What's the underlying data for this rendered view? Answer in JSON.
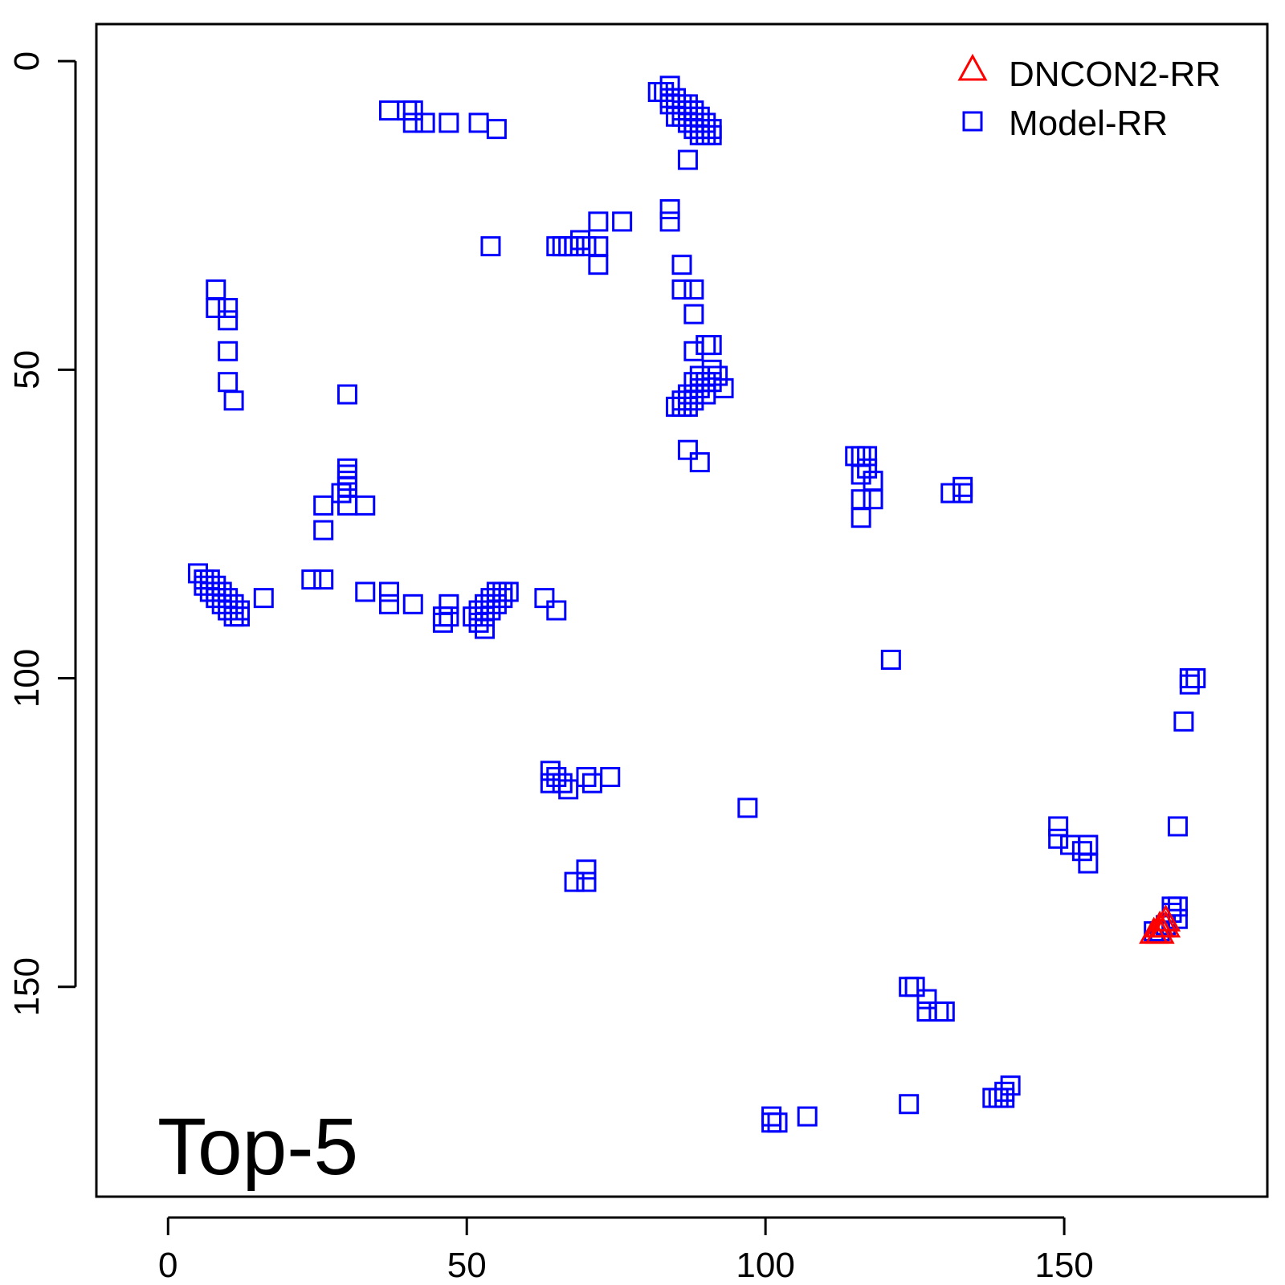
{
  "chart_data": {
    "type": "scatter",
    "title": "",
    "xlabel": "",
    "ylabel": "",
    "annotation": "Top-5",
    "xlim": [
      -12,
      184
    ],
    "ylim": [
      -6,
      184
    ],
    "y_reversed": true,
    "grid": false,
    "legend_position": "top-right",
    "x_ticks": [
      "0",
      "50",
      "100",
      "150"
    ],
    "x_tick_values": [
      0,
      50,
      100,
      150
    ],
    "y_ticks": [
      "0",
      "50",
      "100",
      "150"
    ],
    "y_tick_values": [
      0,
      50,
      100,
      150
    ],
    "series": [
      {
        "name": "DNCON2-RR",
        "marker": "triangle",
        "color": "#ff0000",
        "points": [
          [
            165,
            141
          ],
          [
            166,
            140
          ],
          [
            167,
            139
          ],
          [
            166,
            141
          ],
          [
            167,
            140
          ]
        ]
      },
      {
        "name": "Model-RR",
        "marker": "square",
        "color": "#0000ff",
        "points": [
          [
            37,
            8
          ],
          [
            40,
            8
          ],
          [
            41,
            8
          ],
          [
            41,
            10
          ],
          [
            43,
            10
          ],
          [
            47,
            10
          ],
          [
            52,
            10
          ],
          [
            55,
            11
          ],
          [
            82,
            5
          ],
          [
            83,
            5
          ],
          [
            84,
            4
          ],
          [
            84,
            6
          ],
          [
            84,
            7
          ],
          [
            85,
            6
          ],
          [
            85,
            7
          ],
          [
            85,
            9
          ],
          [
            86,
            7
          ],
          [
            86,
            8
          ],
          [
            86,
            9
          ],
          [
            87,
            7
          ],
          [
            87,
            8
          ],
          [
            87,
            10
          ],
          [
            88,
            8
          ],
          [
            88,
            9
          ],
          [
            88,
            10
          ],
          [
            88,
            11
          ],
          [
            89,
            9
          ],
          [
            89,
            11
          ],
          [
            89,
            12
          ],
          [
            90,
            10
          ],
          [
            90,
            12
          ],
          [
            91,
            11
          ],
          [
            91,
            12
          ],
          [
            87,
            16
          ],
          [
            84,
            24
          ],
          [
            84,
            26
          ],
          [
            86,
            33
          ],
          [
            86,
            37
          ],
          [
            88,
            37
          ],
          [
            88,
            41
          ],
          [
            88,
            47
          ],
          [
            90,
            46
          ],
          [
            91,
            46
          ],
          [
            72,
            26
          ],
          [
            76,
            26
          ],
          [
            54,
            30
          ],
          [
            65,
            30
          ],
          [
            66,
            30
          ],
          [
            67,
            30
          ],
          [
            68,
            30
          ],
          [
            69,
            29
          ],
          [
            70,
            30
          ],
          [
            72,
            30
          ],
          [
            72,
            33
          ],
          [
            8,
            37
          ],
          [
            8,
            40
          ],
          [
            10,
            40
          ],
          [
            10,
            42
          ],
          [
            10,
            47
          ],
          [
            10,
            52
          ],
          [
            11,
            55
          ],
          [
            30,
            54
          ],
          [
            85,
            56
          ],
          [
            86,
            55
          ],
          [
            86,
            56
          ],
          [
            87,
            54
          ],
          [
            87,
            56
          ],
          [
            88,
            52
          ],
          [
            88,
            54
          ],
          [
            88,
            55
          ],
          [
            89,
            51
          ],
          [
            89,
            53
          ],
          [
            90,
            52
          ],
          [
            90,
            54
          ],
          [
            91,
            50
          ],
          [
            91,
            52
          ],
          [
            92,
            51
          ],
          [
            93,
            53
          ],
          [
            87,
            63
          ],
          [
            89,
            65
          ],
          [
            115,
            64
          ],
          [
            116,
            64
          ],
          [
            116,
            67
          ],
          [
            117,
            64
          ],
          [
            117,
            66
          ],
          [
            118,
            68
          ],
          [
            116,
            71
          ],
          [
            118,
            71
          ],
          [
            116,
            74
          ],
          [
            131,
            70
          ],
          [
            133,
            69
          ],
          [
            133,
            70
          ],
          [
            30,
            66
          ],
          [
            30,
            67
          ],
          [
            30,
            68
          ],
          [
            30,
            69
          ],
          [
            29,
            70
          ],
          [
            26,
            72
          ],
          [
            30,
            72
          ],
          [
            33,
            72
          ],
          [
            26,
            76
          ],
          [
            5,
            83
          ],
          [
            6,
            84
          ],
          [
            6,
            85
          ],
          [
            7,
            84
          ],
          [
            7,
            86
          ],
          [
            8,
            85
          ],
          [
            8,
            86
          ],
          [
            8,
            87
          ],
          [
            9,
            86
          ],
          [
            9,
            88
          ],
          [
            10,
            87
          ],
          [
            10,
            89
          ],
          [
            11,
            88
          ],
          [
            11,
            90
          ],
          [
            12,
            89
          ],
          [
            12,
            90
          ],
          [
            16,
            87
          ],
          [
            24,
            84
          ],
          [
            26,
            84
          ],
          [
            33,
            86
          ],
          [
            37,
            86
          ],
          [
            37,
            88
          ],
          [
            41,
            88
          ],
          [
            46,
            90
          ],
          [
            46,
            91
          ],
          [
            47,
            88
          ],
          [
            47,
            90
          ],
          [
            51,
            90
          ],
          [
            52,
            89
          ],
          [
            52,
            91
          ],
          [
            53,
            88
          ],
          [
            53,
            90
          ],
          [
            53,
            92
          ],
          [
            54,
            87
          ],
          [
            54,
            89
          ],
          [
            55,
            86
          ],
          [
            55,
            88
          ],
          [
            56,
            86
          ],
          [
            56,
            87
          ],
          [
            57,
            86
          ],
          [
            63,
            87
          ],
          [
            65,
            89
          ],
          [
            121,
            97
          ],
          [
            171,
            100
          ],
          [
            171,
            101
          ],
          [
            172,
            100
          ],
          [
            170,
            107
          ],
          [
            64,
            115
          ],
          [
            64,
            117
          ],
          [
            65,
            116
          ],
          [
            66,
            117
          ],
          [
            67,
            118
          ],
          [
            70,
            116
          ],
          [
            71,
            117
          ],
          [
            74,
            116
          ],
          [
            97,
            121
          ],
          [
            169,
            124
          ],
          [
            149,
            124
          ],
          [
            149,
            126
          ],
          [
            151,
            127
          ],
          [
            153,
            128
          ],
          [
            154,
            127
          ],
          [
            154,
            130
          ],
          [
            68,
            133
          ],
          [
            70,
            133
          ],
          [
            70,
            131
          ],
          [
            165,
            141
          ],
          [
            166,
            141
          ],
          [
            167,
            140
          ],
          [
            168,
            138
          ],
          [
            169,
            139
          ],
          [
            169,
            137
          ],
          [
            168,
            137
          ],
          [
            124,
            150
          ],
          [
            125,
            150
          ],
          [
            127,
            152
          ],
          [
            127,
            154
          ],
          [
            129,
            154
          ],
          [
            130,
            154
          ],
          [
            101,
            171
          ],
          [
            101,
            172
          ],
          [
            102,
            172
          ],
          [
            107,
            171
          ],
          [
            124,
            169
          ],
          [
            138,
            168
          ],
          [
            139,
            168
          ],
          [
            140,
            167
          ],
          [
            141,
            166
          ],
          [
            140,
            168
          ]
        ]
      }
    ]
  }
}
